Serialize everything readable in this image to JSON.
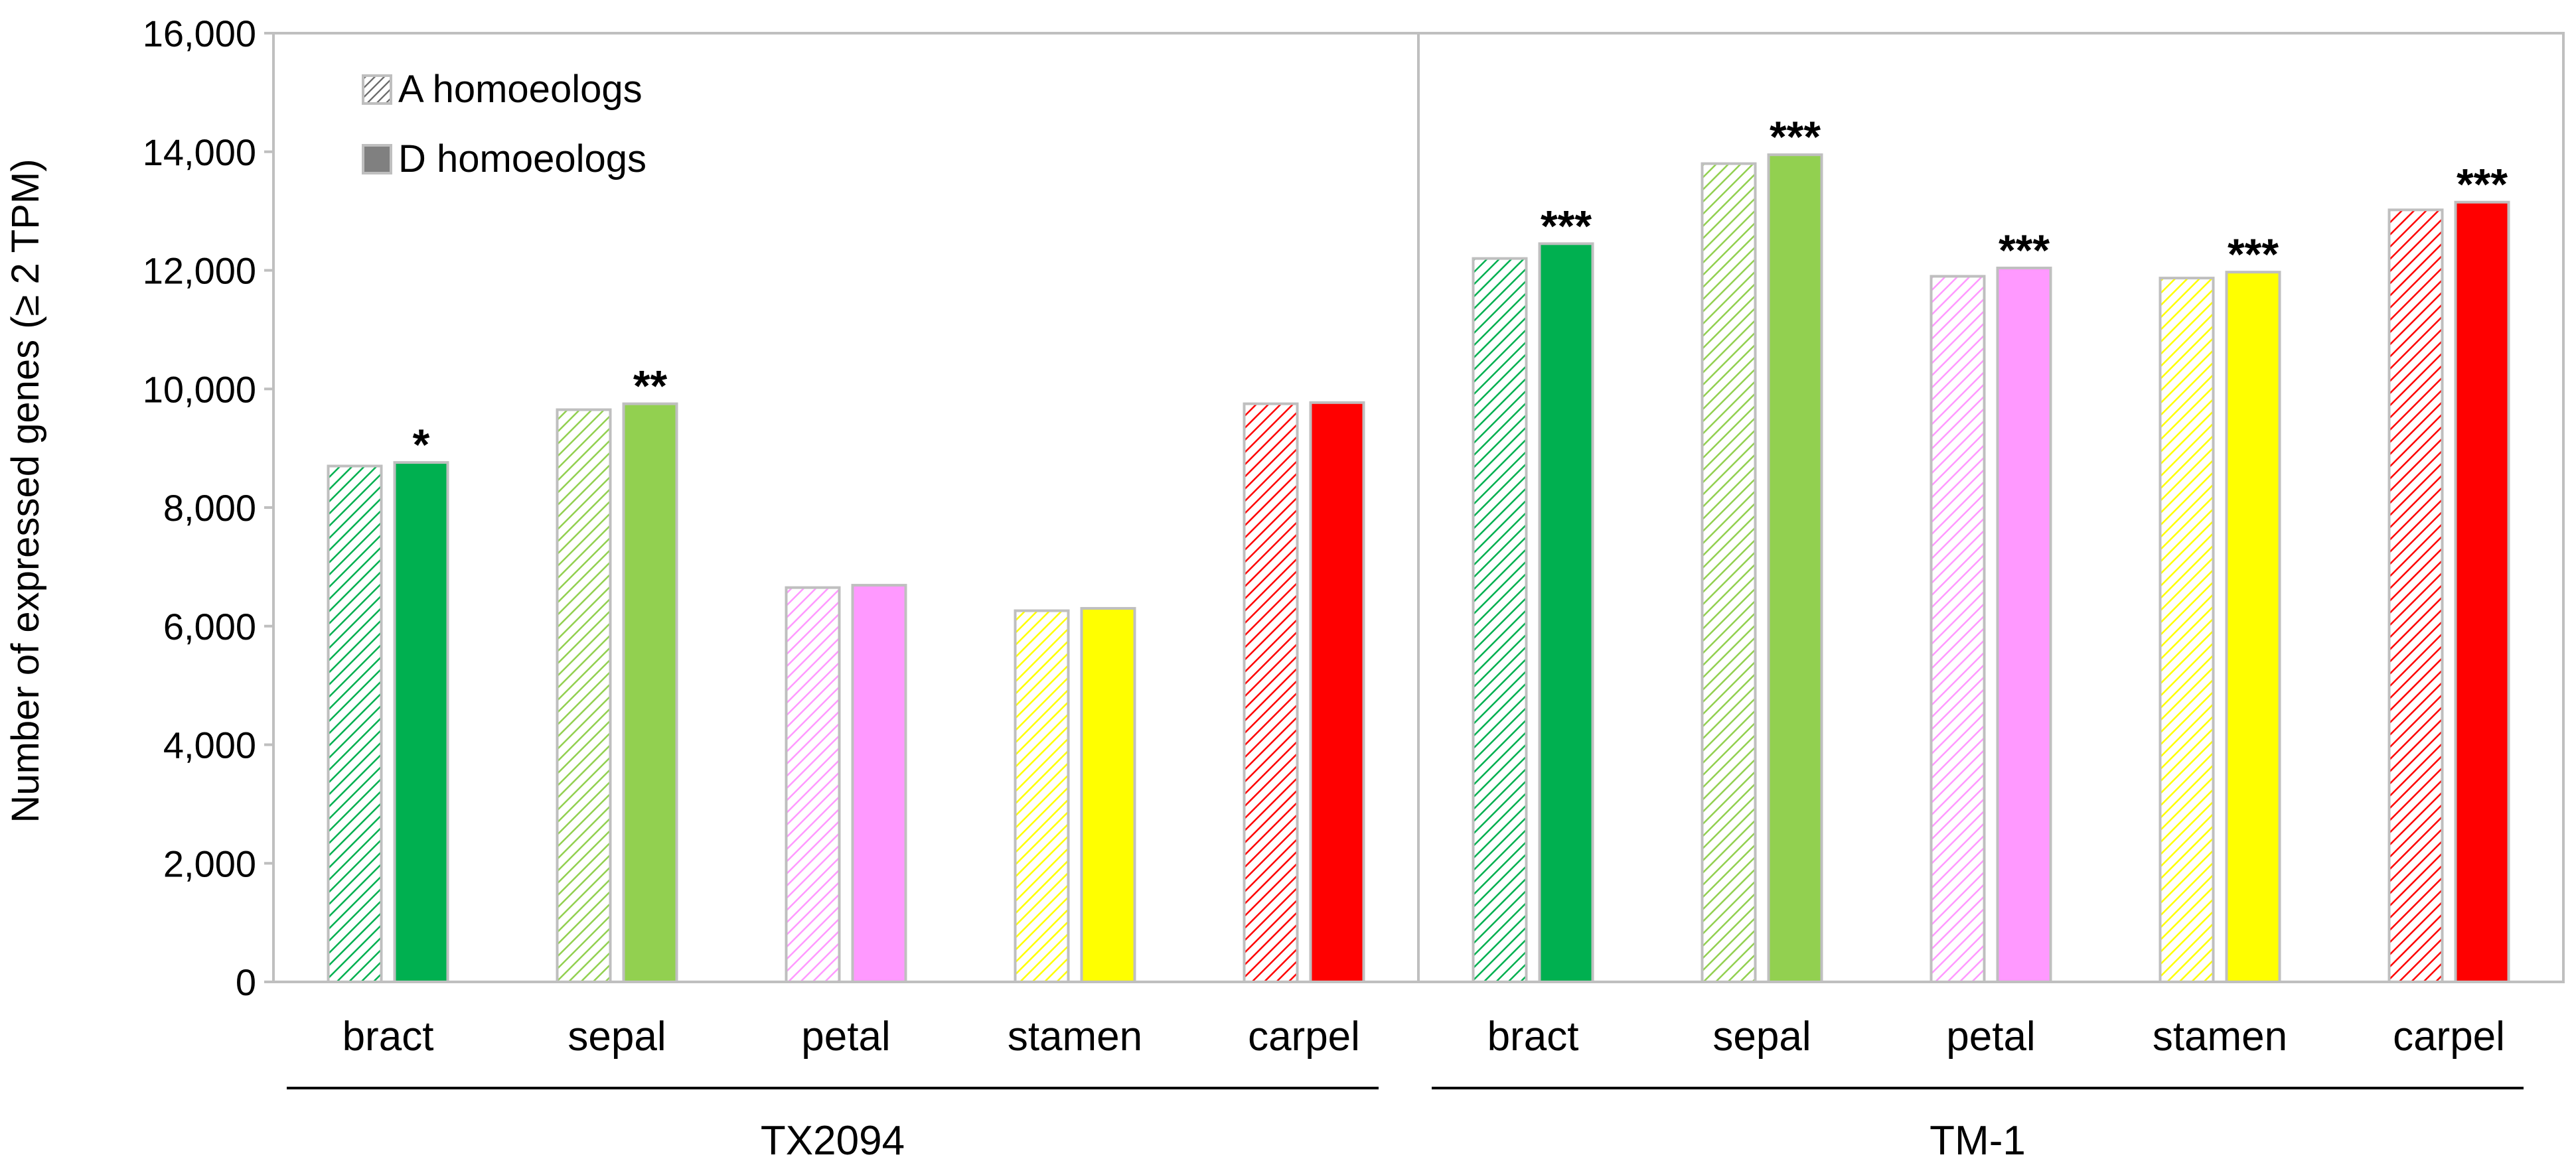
{
  "chart_data": {
    "type": "bar",
    "ylabel": "Number of expressed genes (≥ 2 TPM)",
    "ylim": [
      0,
      16000
    ],
    "yticks": [
      0,
      2000,
      4000,
      6000,
      8000,
      10000,
      12000,
      14000,
      16000
    ],
    "ytick_labels": [
      "0",
      "2,000",
      "4,000",
      "6,000",
      "8,000",
      "10,000",
      "12,000",
      "14,000",
      "16,000"
    ],
    "grid": false,
    "legend_position": "top-left",
    "legend": [
      {
        "name": "A homoeologs",
        "style": "hatched"
      },
      {
        "name": "D homoeologs",
        "style": "solid"
      }
    ],
    "groups": [
      {
        "name": "TX2094",
        "categories": [
          {
            "label": "bract",
            "color": "#00b050",
            "a": 8700,
            "d": 8760,
            "sig": "*"
          },
          {
            "label": "sepal",
            "color": "#92d050",
            "a": 9650,
            "d": 9750,
            "sig": "**"
          },
          {
            "label": "petal",
            "color": "#ff99ff",
            "a": 6650,
            "d": 6690,
            "sig": ""
          },
          {
            "label": "stamen",
            "color": "#ffff00",
            "a": 6260,
            "d": 6300,
            "sig": ""
          },
          {
            "label": "carpel",
            "color": "#ff0000",
            "a": 9750,
            "d": 9770,
            "sig": ""
          }
        ]
      },
      {
        "name": "TM-1",
        "categories": [
          {
            "label": "bract",
            "color": "#00b050",
            "a": 12200,
            "d": 12450,
            "sig": "***"
          },
          {
            "label": "sepal",
            "color": "#92d050",
            "a": 13800,
            "d": 13950,
            "sig": "***"
          },
          {
            "label": "petal",
            "color": "#ff99ff",
            "a": 11900,
            "d": 12040,
            "sig": "***"
          },
          {
            "label": "stamen",
            "color": "#ffff00",
            "a": 11870,
            "d": 11970,
            "sig": "***"
          },
          {
            "label": "carpel",
            "color": "#ff0000",
            "a": 13020,
            "d": 13150,
            "sig": "***"
          }
        ]
      }
    ]
  }
}
